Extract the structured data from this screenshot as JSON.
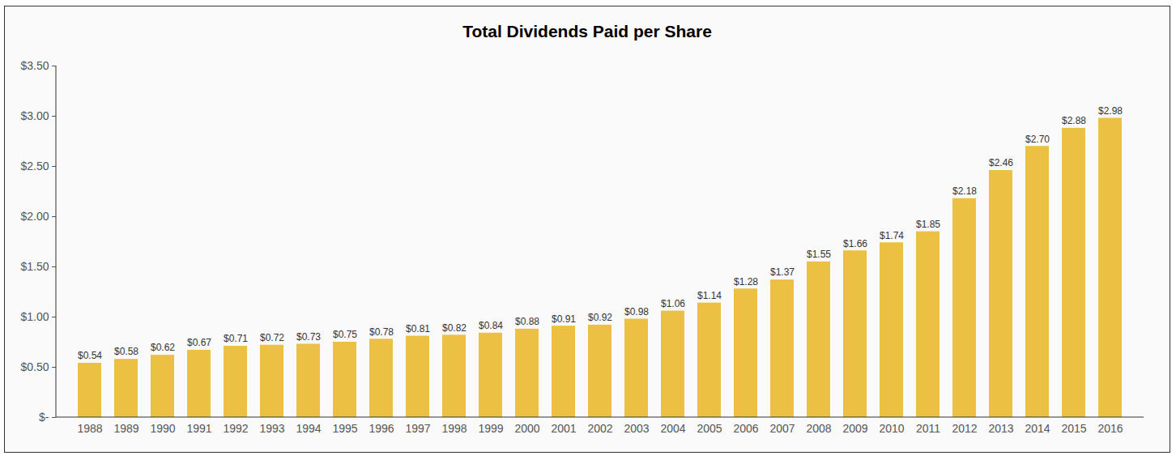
{
  "chart_data": {
    "type": "bar",
    "title": "Total Dividends Paid per Share",
    "categories": [
      "1988",
      "1989",
      "1990",
      "1991",
      "1992",
      "1993",
      "1994",
      "1995",
      "1996",
      "1997",
      "1998",
      "1999",
      "2000",
      "2001",
      "2002",
      "2003",
      "2004",
      "2005",
      "2006",
      "2007",
      "2008",
      "2009",
      "2010",
      "2011",
      "2012",
      "2013",
      "2014",
      "2015",
      "2016"
    ],
    "values": [
      0.54,
      0.58,
      0.62,
      0.67,
      0.71,
      0.72,
      0.73,
      0.75,
      0.78,
      0.81,
      0.82,
      0.84,
      0.88,
      0.91,
      0.92,
      0.98,
      1.06,
      1.14,
      1.28,
      1.37,
      1.55,
      1.66,
      1.74,
      1.85,
      2.18,
      2.46,
      2.7,
      2.88,
      2.98
    ],
    "value_labels": [
      "$0.54",
      "$0.58",
      "$0.62",
      "$0.67",
      "$0.71",
      "$0.72",
      "$0.73",
      "$0.75",
      "$0.78",
      "$0.81",
      "$0.82",
      "$0.84",
      "$0.88",
      "$0.91",
      "$0.92",
      "$0.98",
      "$1.06",
      "$1.14",
      "$1.28",
      "$1.37",
      "$1.55",
      "$1.66",
      "$1.74",
      "$1.85",
      "$2.18",
      "$2.46",
      "$2.70",
      "$2.88",
      "$2.98"
    ],
    "color": "#ecc043",
    "ylim": [
      0,
      3.5
    ],
    "yticks": [
      {
        "value": 0,
        "label": "$-"
      },
      {
        "value": 0.5,
        "label": "$0.50"
      },
      {
        "value": 1,
        "label": "$1.00"
      },
      {
        "value": 1.5,
        "label": "$1.50"
      },
      {
        "value": 2,
        "label": "$2.00"
      },
      {
        "value": 2.5,
        "label": "$2.50"
      },
      {
        "value": 3,
        "label": "$3.00"
      },
      {
        "value": 3.5,
        "label": "$3.50"
      }
    ],
    "grid": false,
    "data_labels": true
  }
}
